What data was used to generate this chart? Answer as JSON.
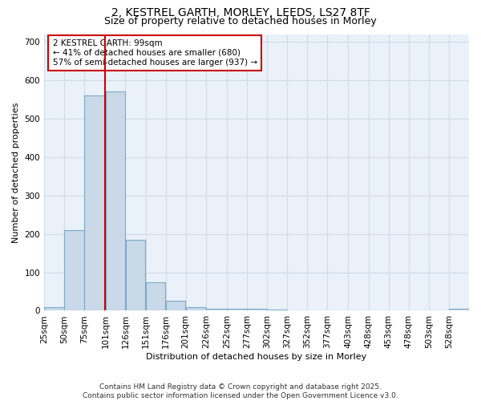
{
  "title_line1": "2, KESTREL GARTH, MORLEY, LEEDS, LS27 8TF",
  "title_line2": "Size of property relative to detached houses in Morley",
  "xlabel": "Distribution of detached houses by size in Morley",
  "ylabel": "Number of detached properties",
  "bar_edges": [
    25,
    50,
    75,
    101,
    126,
    151,
    176,
    201,
    226,
    252,
    277,
    302,
    327,
    352,
    377,
    403,
    428,
    453,
    478,
    503,
    528,
    553
  ],
  "bar_heights": [
    10,
    210,
    560,
    570,
    185,
    75,
    27,
    10,
    5,
    5,
    5,
    3,
    0,
    0,
    0,
    0,
    0,
    0,
    0,
    0,
    5
  ],
  "bar_color": "#c9d9e8",
  "bar_edge_color": "#7aaac8",
  "bar_linewidth": 0.8,
  "red_line_x": 101,
  "red_line_color": "#cc0000",
  "annotation_text": "2 KESTREL GARTH: 99sqm\n← 41% of detached houses are smaller (680)\n57% of semi-detached houses are larger (937) →",
  "annotation_box_color": "white",
  "annotation_box_edge": "#cc0000",
  "ylim": [
    0,
    720
  ],
  "yticks": [
    0,
    100,
    200,
    300,
    400,
    500,
    600,
    700
  ],
  "background_color": "#eaf1f8",
  "grid_color": "#d0dde8",
  "footnote": "Contains HM Land Registry data © Crown copyright and database right 2025.\nContains public sector information licensed under the Open Government Licence v3.0.",
  "title_fontsize": 10,
  "subtitle_fontsize": 9,
  "axis_label_fontsize": 8,
  "tick_fontsize": 7.5,
  "annotation_fontsize": 7.5,
  "footnote_fontsize": 6.5,
  "tick_labels": [
    "25sqm",
    "50sqm",
    "75sqm",
    "101sqm",
    "126sqm",
    "151sqm",
    "176sqm",
    "201sqm",
    "226sqm",
    "252sqm",
    "277sqm",
    "302sqm",
    "327sqm",
    "352sqm",
    "377sqm",
    "403sqm",
    "428sqm",
    "453sqm",
    "478sqm",
    "503sqm",
    "528sqm"
  ]
}
